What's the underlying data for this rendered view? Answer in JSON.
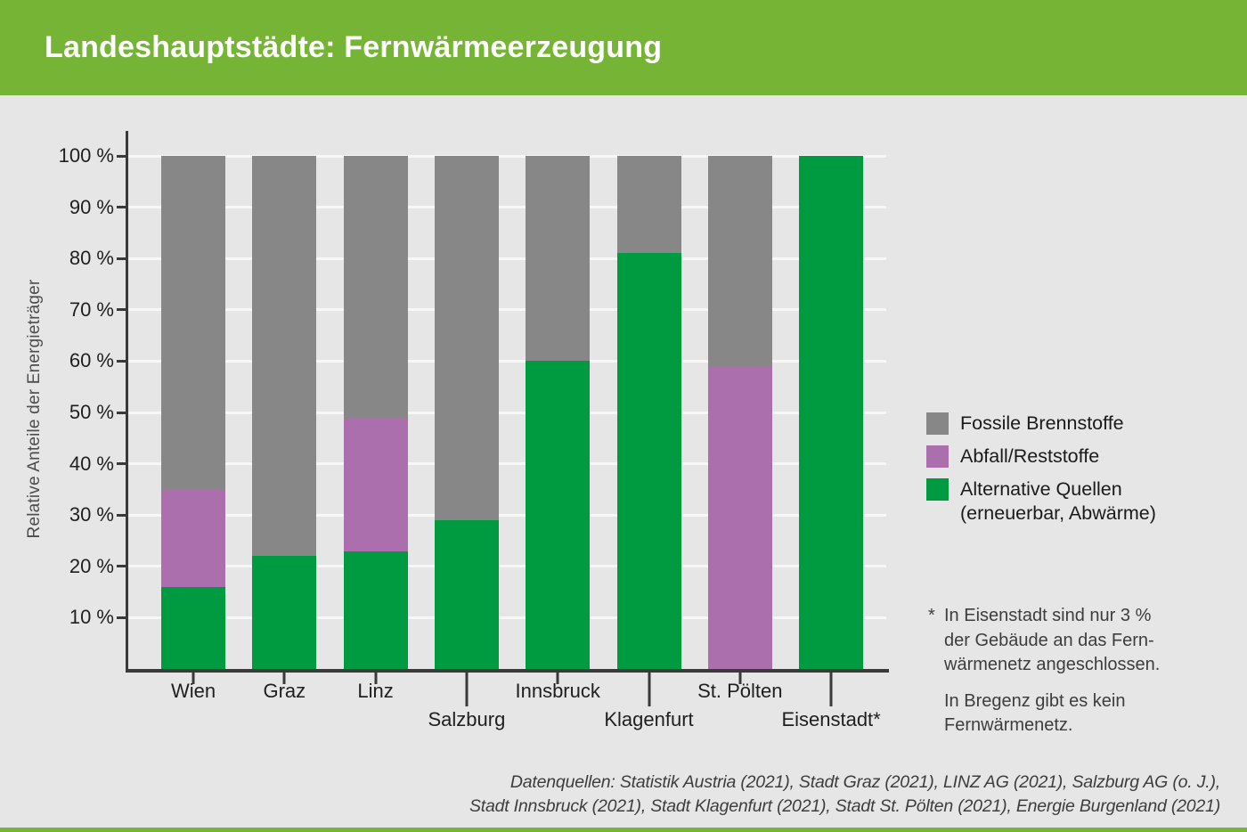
{
  "header": {
    "title": "Landeshauptstädte: Fernwärmeerzeugung",
    "accent_green": "#76b435"
  },
  "chart_data": {
    "type": "bar",
    "subtype": "stacked-percentage",
    "categories": [
      "Wien",
      "Graz",
      "Linz",
      "Salzburg",
      "Innsbruck",
      "Klagenfurt",
      "St. Pölten",
      "Eisenstadt*"
    ],
    "category_label_rows": [
      0,
      0,
      0,
      1,
      0,
      1,
      0,
      1
    ],
    "series": [
      {
        "name": "Alternative Quellen (erneuerbar, Abwärme)",
        "color": "#009a40",
        "values": [
          16,
          22,
          23,
          29,
          60,
          81,
          0,
          100
        ]
      },
      {
        "name": "Abfall/Reststoffe",
        "color": "#aa6fac",
        "values": [
          19,
          0,
          26,
          0,
          0,
          0,
          59,
          0
        ]
      },
      {
        "name": "Fossile Brennstoffe",
        "color": "#878787",
        "values": [
          65,
          78,
          51,
          71,
          40,
          19,
          41,
          0
        ]
      }
    ],
    "ylabel": "Relative Anteile der Energieträger",
    "ylim": [
      0,
      100
    ],
    "ytick_labels": [
      "10 %",
      "20 %",
      "30 %",
      "40 %",
      "50 %",
      "60 %",
      "70 %",
      "80 %",
      "90 %",
      "100 %"
    ],
    "grid": "horizontal-white",
    "legend_position": "right"
  },
  "legend": {
    "items": [
      {
        "label": "Fossile Brennstoffe",
        "color": "#878787"
      },
      {
        "label": "Abfall/Reststoffe",
        "color": "#aa6fac"
      },
      {
        "label": "Alternative Quellen\n(erneuerbar, Abwärme)",
        "color": "#009a40"
      }
    ]
  },
  "footnote": {
    "marker": "*",
    "text1": "In Eisenstadt sind nur 3 %\nder Gebäude an das Fern-\nwärmenetz angeschlossen.",
    "text2": "In Bregenz gibt es kein\nFernwärmenetz."
  },
  "source": "Datenquellen: Statistik Austria (2021), Stadt Graz (2021), LINZ AG (2021), Salzburg AG (o. J.),\nStadt Innsbruck (2021), Stadt Klagenfurt (2021), Stadt St. Pölten (2021), Energie Burgenland (2021)"
}
